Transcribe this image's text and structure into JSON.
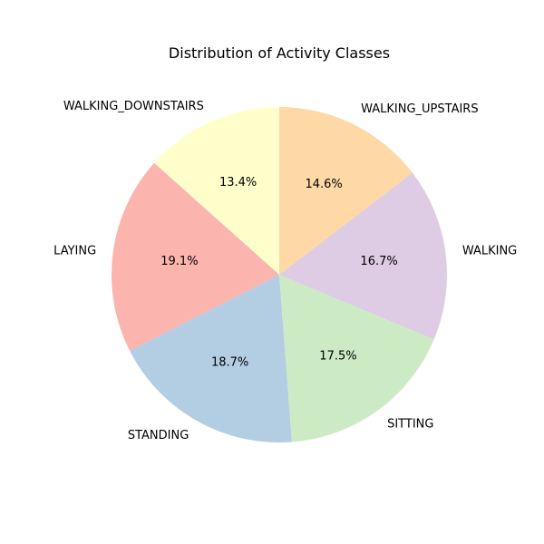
{
  "chart_data": {
    "type": "pie",
    "title": "Distribution of Activity Classes",
    "start_angle_deg": 90,
    "direction": "counterclockwise",
    "slices": [
      {
        "label": "WALKING_DOWNSTAIRS",
        "value": 13.4,
        "pct_label": "13.4%",
        "color": "#ffffcc"
      },
      {
        "label": "LAYING",
        "value": 19.1,
        "pct_label": "19.1%",
        "color": "#fbb4ae"
      },
      {
        "label": "STANDING",
        "value": 18.7,
        "pct_label": "18.7%",
        "color": "#b3cde3"
      },
      {
        "label": "SITTING",
        "value": 17.5,
        "pct_label": "17.5%",
        "color": "#ccebc5"
      },
      {
        "label": "WALKING",
        "value": 16.7,
        "pct_label": "16.7%",
        "color": "#decbe4"
      },
      {
        "label": "WALKING_UPSTAIRS",
        "value": 14.6,
        "pct_label": "14.6%",
        "color": "#fed9a6"
      }
    ]
  }
}
